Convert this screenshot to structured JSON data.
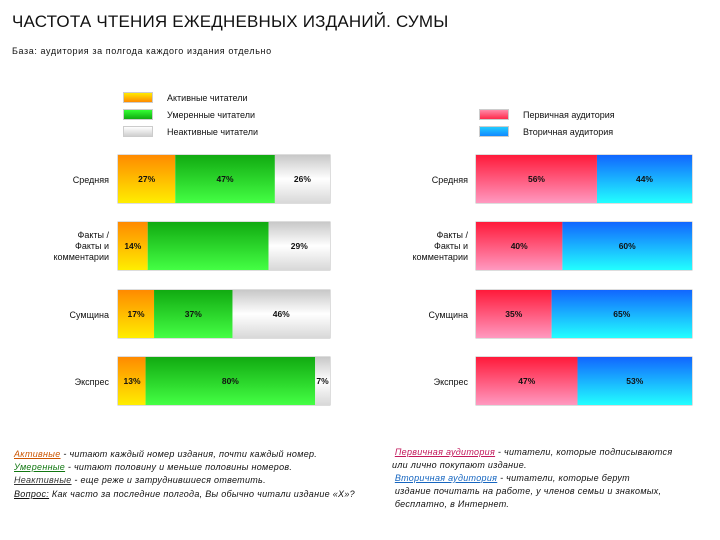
{
  "title": "ЧАСТОТА ЧТЕНИЯ ЕЖЕДНЕВНЫХ ИЗДАНИЙ. СУМЫ",
  "base": "База: аудитория за полгода каждого издания отдельно",
  "legend_left": [
    "Активные читатели",
    "Умеренные читатели",
    "Неактивные читатели"
  ],
  "legend_right": [
    "Первичная аудитория",
    "Вторичная аудитория"
  ],
  "chart_data": [
    {
      "type": "bar",
      "orientation": "horizontal",
      "stacked": true,
      "categories": [
        "Средняя",
        "Факты / Факты и комментарии",
        "Сумщина",
        "Экспрес"
      ],
      "series": [
        {
          "name": "Активные читатели",
          "values": [
            27,
            14,
            17,
            13
          ]
        },
        {
          "name": "Умеренные читатели",
          "values": [
            47,
            57,
            37,
            80
          ]
        },
        {
          "name": "Неактивные читатели",
          "values": [
            26,
            29,
            46,
            7
          ]
        }
      ],
      "data_labels": [
        [
          "27%",
          "47%",
          "26%"
        ],
        [
          "14%",
          "",
          "29%"
        ],
        [
          "17%",
          "37%",
          "46%"
        ],
        [
          "13%",
          "80%",
          "7%"
        ]
      ],
      "colors": [
        "#ffb000",
        "#22dd22",
        "#d6d6d6"
      ],
      "legend": "top"
    },
    {
      "type": "bar",
      "orientation": "horizontal",
      "stacked": true,
      "categories": [
        "Средняя",
        "Факты / Факты и комментарии",
        "Сумщина",
        "Экспрес"
      ],
      "series": [
        {
          "name": "Первичная аудитория",
          "values": [
            56,
            40,
            35,
            47
          ]
        },
        {
          "name": "Вторичная аудитория",
          "values": [
            44,
            60,
            65,
            53
          ]
        }
      ],
      "data_labels": [
        [
          "56%",
          "44%"
        ],
        [
          "40%",
          "60%"
        ],
        [
          "35%",
          "65%"
        ],
        [
          "47%",
          "53%"
        ]
      ],
      "colors": [
        "#ff4d6d",
        "#22aaff"
      ],
      "legend": "top-right"
    }
  ],
  "row_labels_left": [
    "Средняя",
    "Факты /\nФакты и\nкомментарии",
    "Сумщина",
    "Экспрес"
  ],
  "row_labels_right": [
    "Средняя",
    "Факты /\nФакты и\nкомментарии",
    "Сумщина",
    "Экспрес"
  ],
  "notes_left": {
    "active_term": "Активные",
    "active_text": " - читают каждый номер издания, почти каждый номер.",
    "moderate_term": "Умеренные",
    "moderate_text": " - читают половину и меньше  половины номеров.",
    "inactive_term": "Неактивные",
    "inactive_text": " - еще реже и затруднившиеся ответить.",
    "question_term": "Вопрос:",
    "question_text": " Как часто за последние полгода, Вы обычно читали издание «Х»?"
  },
  "notes_right": {
    "primary_term": "Первичная аудитория",
    "primary_text": " - читатели, которые подписываются",
    "primary_text2": "или лично покупают издание.",
    "secondary_term": "Вторичная аудитория",
    "secondary_text": " - читатели, которые берут",
    "secondary_text2": "издание почитать на работе, у членов семьи и знакомых,",
    "secondary_text3": "бесплатно, в Интернет."
  }
}
